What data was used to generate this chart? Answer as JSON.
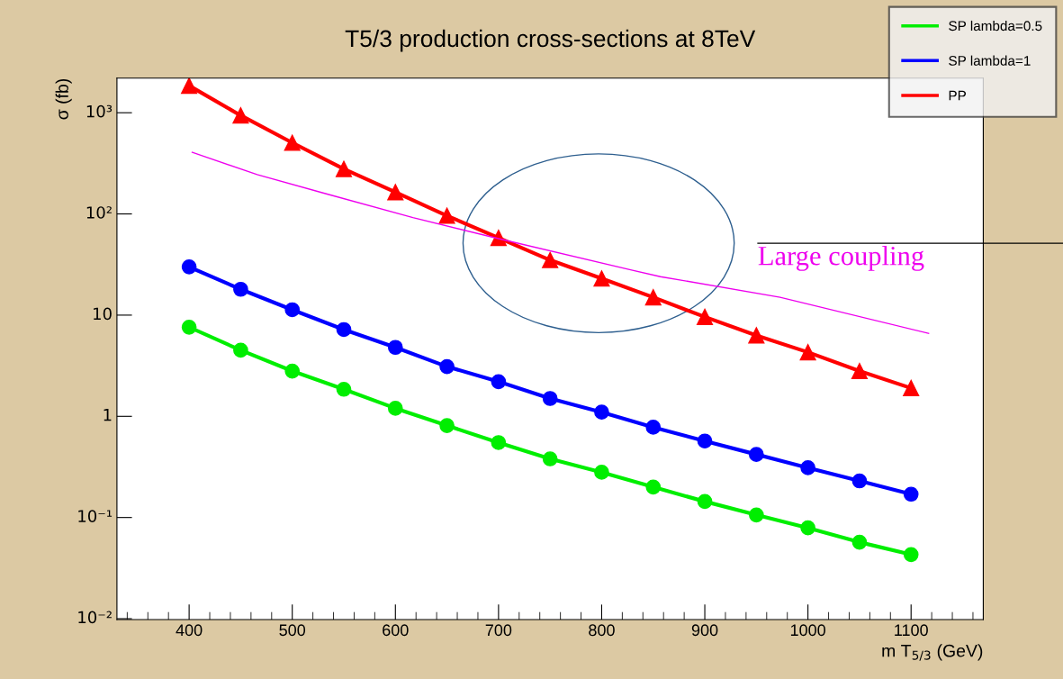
{
  "chart_data": {
    "type": "line",
    "title": "T5/3 production cross-sections at 8TeV",
    "xlabel": "m T$_{5/3}$ (GeV)",
    "ylabel": "σ (fb)",
    "log": "y",
    "xlim": [
      330,
      1170
    ],
    "xticks": [
      400,
      500,
      600,
      700,
      800,
      900,
      1000,
      1100
    ],
    "ylim": [
      0.0098,
      2200
    ],
    "yticks": [
      {
        "value": 0.01,
        "label": "10⁻²"
      },
      {
        "value": 0.1,
        "label": "10⁻¹"
      },
      1,
      10,
      {
        "value": 100,
        "label": "10²"
      },
      {
        "value": 1000,
        "label": "10³"
      }
    ],
    "grid": false,
    "legend": "top right",
    "x": [
      400,
      450,
      500,
      550,
      600,
      650,
      700,
      750,
      800,
      850,
      900,
      950,
      1000,
      1050,
      1100
    ],
    "series": [
      {
        "name": "SP lambda=0.5",
        "color": "#00ee00",
        "marker": "circle",
        "values": [
          7.6,
          4.5,
          2.8,
          1.85,
          1.2,
          0.81,
          0.55,
          0.38,
          0.28,
          0.2,
          0.144,
          0.106,
          0.079,
          0.057,
          0.043
        ]
      },
      {
        "name": "SP lambda=1",
        "color": "#0000ff",
        "marker": "circle",
        "values": [
          30,
          18,
          11.3,
          7.2,
          4.8,
          3.1,
          2.2,
          1.5,
          1.1,
          0.78,
          0.57,
          0.42,
          0.31,
          0.23,
          0.17
        ]
      },
      {
        "name": "PP",
        "color": "#ff0000",
        "marker": "triangle",
        "values": [
          1850,
          940,
          505,
          278,
          164,
          96,
          58,
          35,
          23,
          15,
          9.6,
          6.3,
          4.3,
          2.8,
          1.9
        ]
      },
      {
        "name": "Large coupling",
        "color": "#ee00ee",
        "marker": "none",
        "x": [
          403,
          466,
          533,
          617,
          700,
          828,
          857,
          973,
          1117
        ],
        "values": [
          406,
          245,
          158,
          92,
          57,
          28,
          24,
          15,
          6.6
        ]
      }
    ]
  }
}
